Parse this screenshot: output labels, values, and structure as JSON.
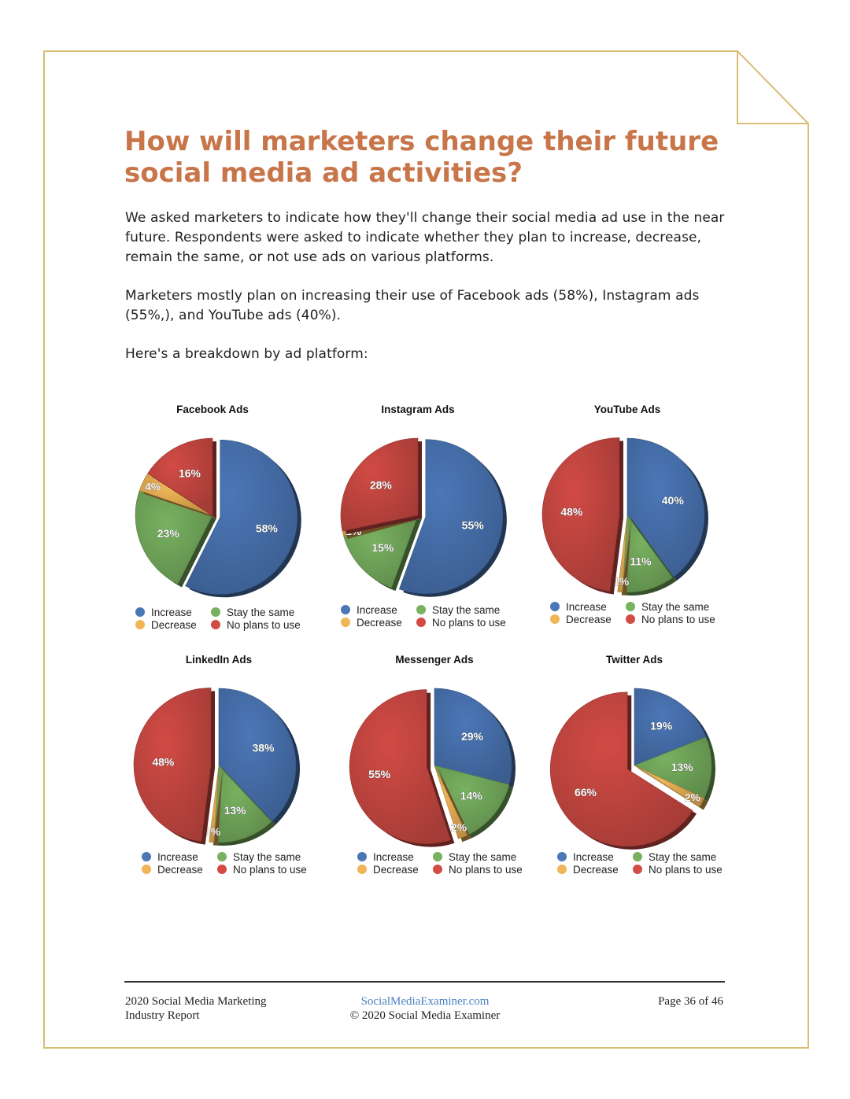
{
  "colors": {
    "increase": "#4b77b7",
    "decrease": "#f0b556",
    "stay": "#78b160",
    "no_plans": "#d24b45",
    "title": "#c8754a",
    "frame": "#d8be74"
  },
  "heading": {
    "line1": "How will marketers change their future",
    "line2": "social media ad activities?"
  },
  "intro": {
    "p1_lines": [
      "We asked marketers to indicate how they'll change their social media ad use in the near",
      "future. Respondents were asked to indicate whether they plan to increase, decrease,",
      "remain the same, or not use ads on various platforms."
    ],
    "p2_lines": [
      "Marketers mostly plan on increasing their use of Facebook ads (58%), Instagram ads",
      "(55%,), and YouTube ads (40%)."
    ],
    "p3": "Here's a breakdown by ad platform:"
  },
  "legend_labels": {
    "increase": "Increase",
    "decrease": "Decrease",
    "stay": "Stay the same",
    "no_plans": "No plans to use"
  },
  "chart_data": [
    {
      "type": "pie",
      "title": "Facebook Ads",
      "categories": [
        "Increase",
        "Stay the same",
        "Decrease",
        "No plans to use"
      ],
      "values": [
        58,
        23,
        4,
        16
      ],
      "labels": [
        "58%",
        "23%",
        "4%",
        "16%"
      ],
      "exploded": "Increase"
    },
    {
      "type": "pie",
      "title": "Instagram Ads",
      "categories": [
        "Increase",
        "Stay the same",
        "Decrease",
        "No plans to use"
      ],
      "values": [
        55,
        15,
        1,
        28
      ],
      "labels": [
        "55%",
        "15%",
        "1%",
        "28%"
      ],
      "exploded": "Increase"
    },
    {
      "type": "pie",
      "title": "YouTube Ads",
      "categories": [
        "Increase",
        "Stay the same",
        "Decrease",
        "No plans to use"
      ],
      "values": [
        40,
        11,
        1,
        48
      ],
      "labels": [
        "40%",
        "11%",
        "1%",
        "48%"
      ],
      "exploded": "No plans to use"
    },
    {
      "type": "pie",
      "title": "LinkedIn Ads",
      "categories": [
        "Increase",
        "Stay the same",
        "Decrease",
        "No plans to use"
      ],
      "values": [
        38,
        13,
        1,
        48
      ],
      "labels": [
        "38%",
        "13%",
        "1%",
        "48%"
      ],
      "exploded": "No plans to use"
    },
    {
      "type": "pie",
      "title": "Messenger Ads",
      "categories": [
        "Increase",
        "Stay the same",
        "Decrease",
        "No plans to use"
      ],
      "values": [
        29,
        14,
        2,
        55
      ],
      "labels": [
        "29%",
        "14%",
        "2%",
        "55%"
      ],
      "exploded": "No plans to use"
    },
    {
      "type": "pie",
      "title": "Twitter Ads",
      "categories": [
        "Increase",
        "Stay the same",
        "Decrease",
        "No plans to use"
      ],
      "values": [
        19,
        13,
        2,
        66
      ],
      "labels": [
        "19%",
        "13%",
        "2%",
        "66%"
      ],
      "exploded": "No plans to use"
    }
  ],
  "footer": {
    "left_line1": "2020 Social Media Marketing",
    "left_line2": "Industry Report",
    "center_link": "SocialMediaExaminer.com",
    "center_copyright": "© 2020 Social Media Examiner",
    "page": "Page 36 of 46"
  }
}
